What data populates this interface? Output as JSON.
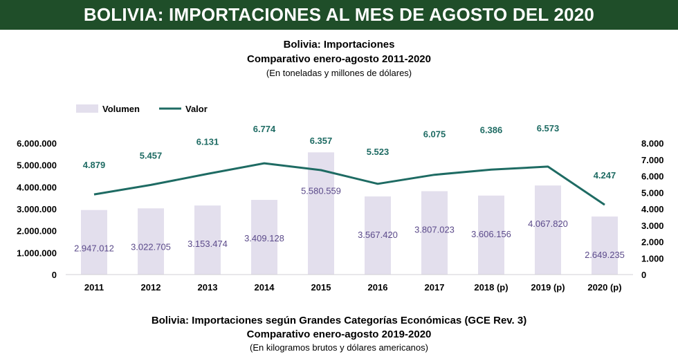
{
  "banner": "BOLIVIA: IMPORTACIONES AL MES DE AGOSTO DEL 2020",
  "chart_data": {
    "type": "bar",
    "title": "Bolivia: Importaciones",
    "subtitle": "Comparativo enero-agosto 2011-2020",
    "units_note": "(En toneladas y millones de dólares)",
    "categories": [
      "2011",
      "2012",
      "2013",
      "2014",
      "2015",
      "2016",
      "2017",
      "2018 (p)",
      "2019 (p)",
      "2020 (p)"
    ],
    "series": [
      {
        "name": "Volumen",
        "type": "bar",
        "axis": "left",
        "color": "#e3dfed",
        "values": [
          2947012,
          3022705,
          3153474,
          3409128,
          5580559,
          3567420,
          3807023,
          3606156,
          4067820,
          2649235
        ],
        "labels": [
          "2.947.012",
          "3.022.705",
          "3.153.474",
          "3.409.128",
          "5.580.559",
          "3.567.420",
          "3.807.023",
          "3.606.156",
          "4.067.820",
          "2.649.235"
        ]
      },
      {
        "name": "Valor",
        "type": "line",
        "axis": "right",
        "color": "#1e6b63",
        "values": [
          4879,
          5457,
          6131,
          6774,
          6357,
          5523,
          6075,
          6386,
          6573,
          4247
        ],
        "labels": [
          "4.879",
          "5.457",
          "6.131",
          "6.774",
          "6.357",
          "5.523",
          "6.075",
          "6.386",
          "6.573",
          "4.247"
        ]
      }
    ],
    "y_left": {
      "lim": [
        0,
        6000000
      ],
      "ticks": [
        "0",
        "1.000.000",
        "2.000.000",
        "3.000.000",
        "4.000.000",
        "5.000.000",
        "6.000.000"
      ]
    },
    "y_right": {
      "lim": [
        0,
        8000
      ],
      "ticks": [
        "0",
        "1.000",
        "2.000",
        "3.000",
        "4.000",
        "5.000",
        "6.000",
        "7.000",
        "8.000"
      ]
    },
    "legend_position": "top-left",
    "grid": false,
    "bar_label_color": "#5b4a8a",
    "line_label_color": "#1e6b63"
  },
  "section2": {
    "title": "Bolivia: Importaciones según Grandes Categorías Económicas (GCE Rev. 3)",
    "subtitle": "Comparativo enero-agosto 2019-2020",
    "units_note": "(En kilogramos brutos y dólares americanos)"
  }
}
